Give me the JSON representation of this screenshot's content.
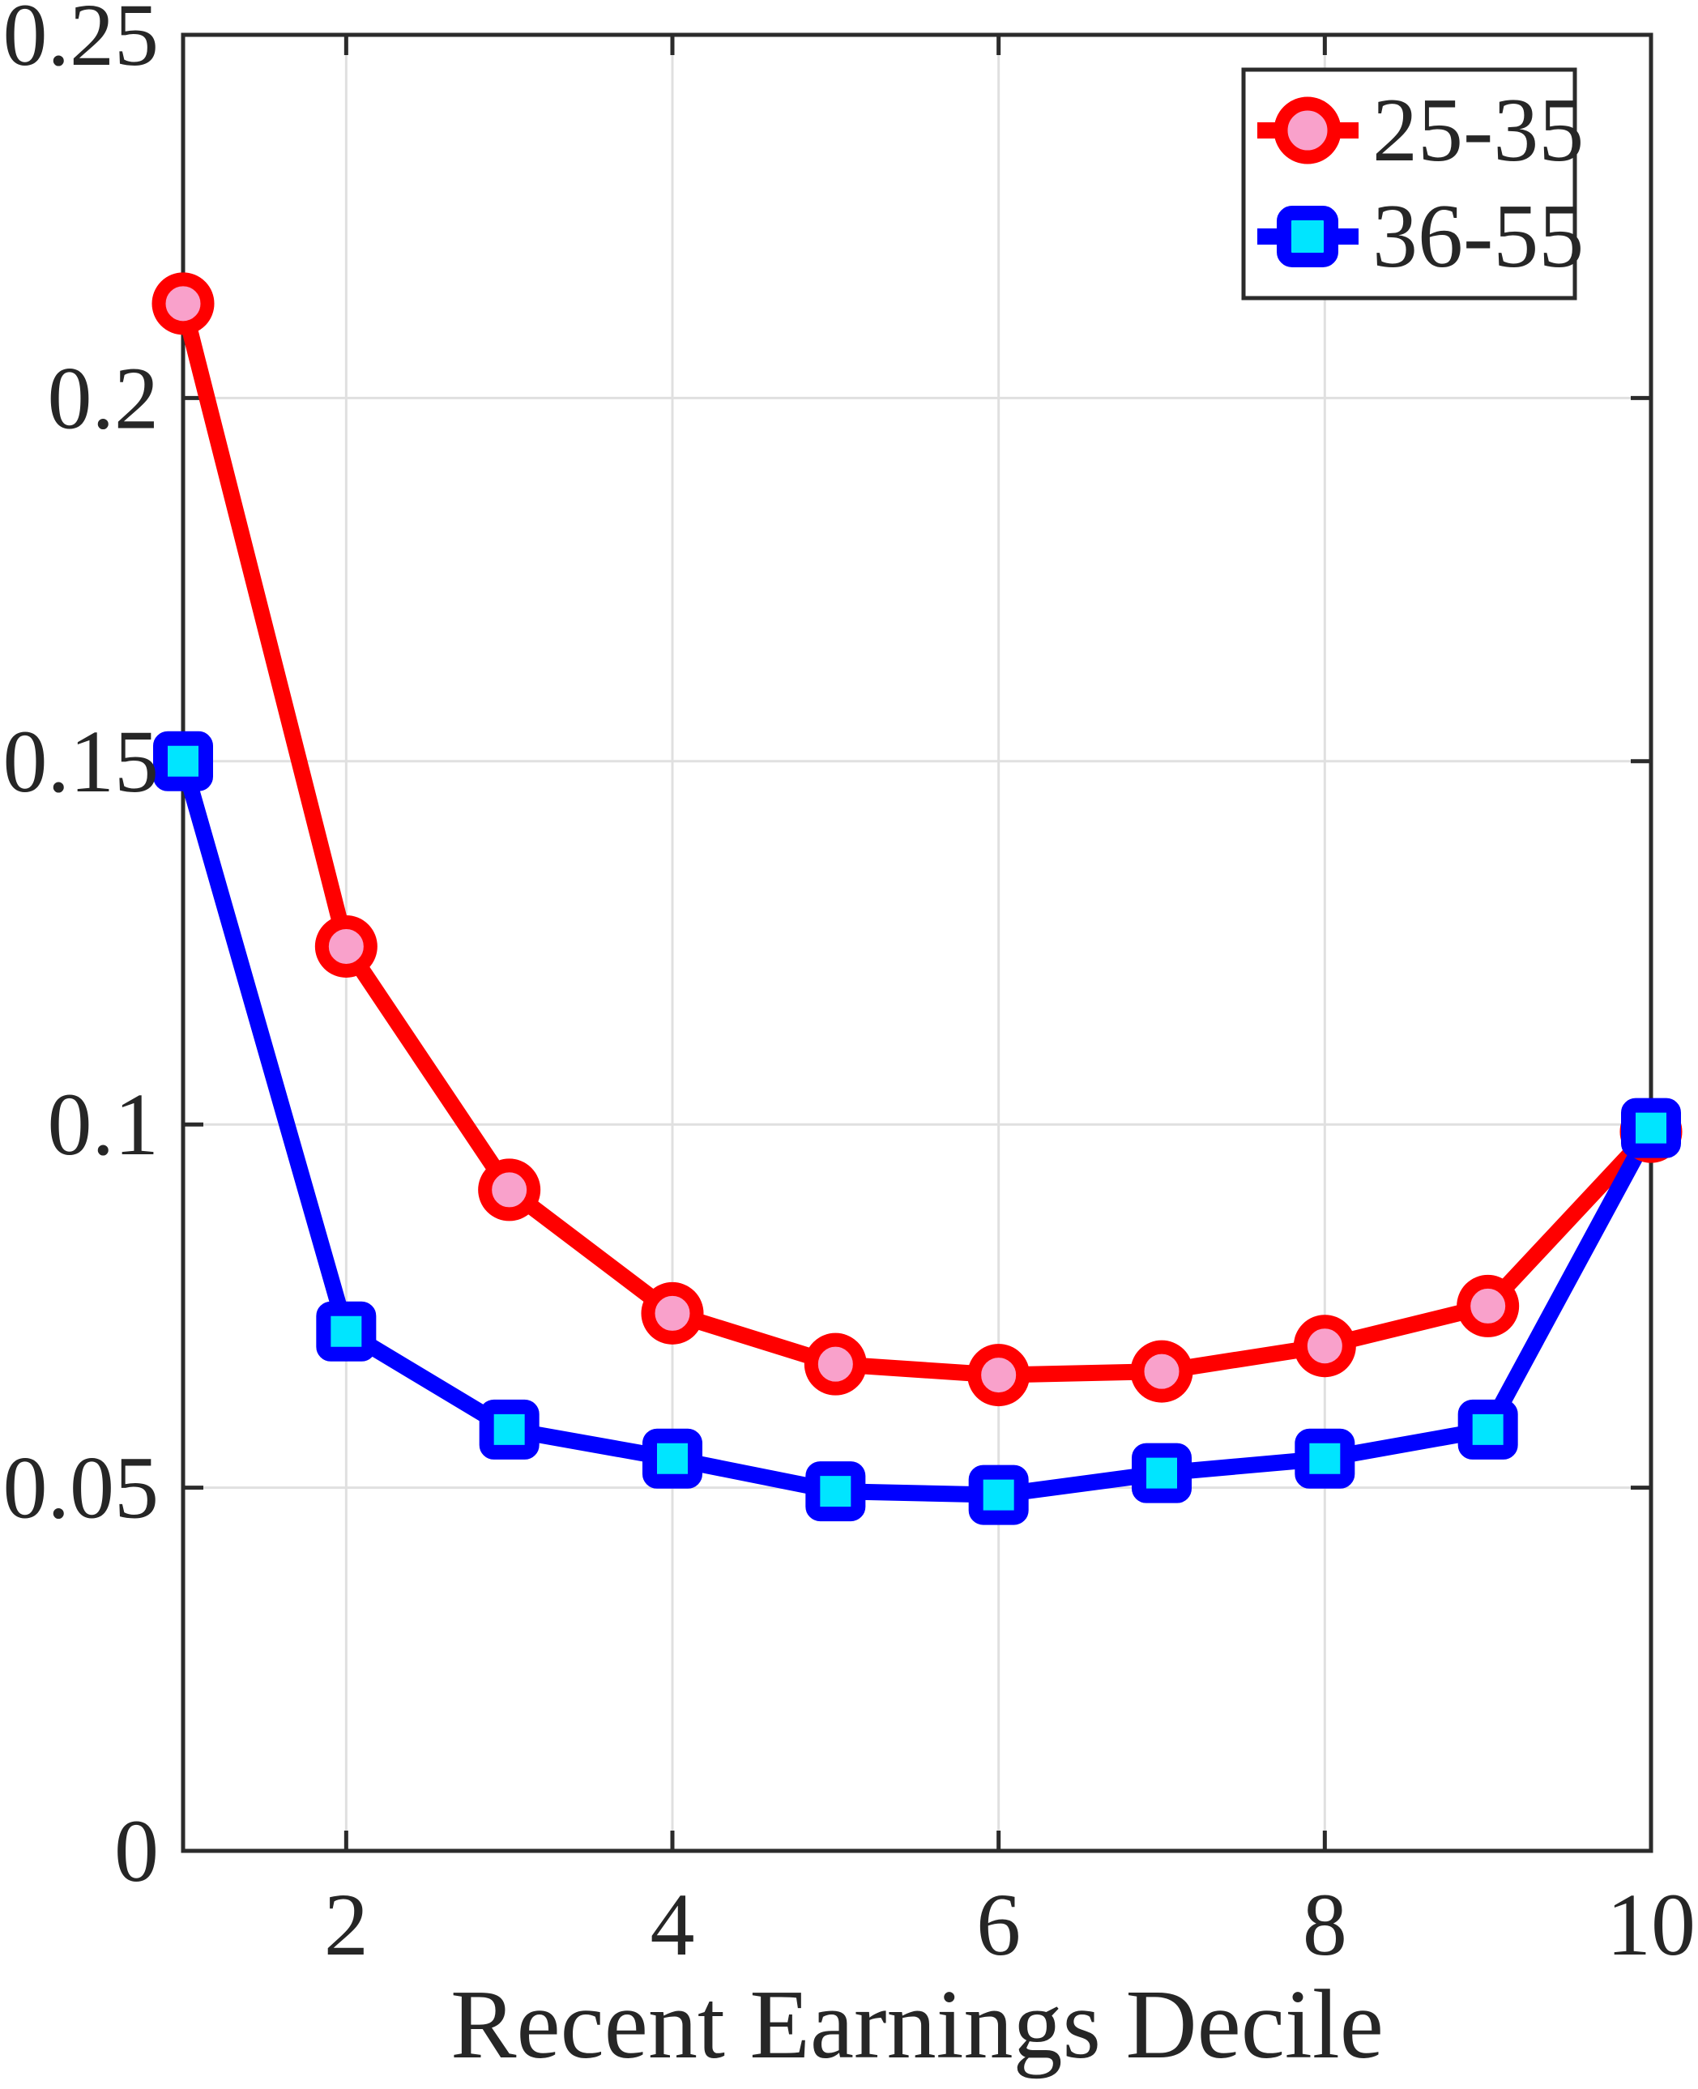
{
  "figure": {
    "background": "#ffffff"
  },
  "chart_data": {
    "type": "line",
    "title": "",
    "xlabel": "Recent Earnings Decile",
    "ylabel": "",
    "x": [
      1,
      2,
      3,
      4,
      5,
      6,
      7,
      8,
      9,
      10
    ],
    "series": [
      {
        "name": "25-35",
        "color": "#ff0000",
        "marker": "circle",
        "marker_face": "#f9a1cb",
        "values": [
          0.213,
          0.1245,
          0.091,
          0.074,
          0.067,
          0.0655,
          0.066,
          0.0695,
          0.075,
          0.099
        ]
      },
      {
        "name": "36-55",
        "color": "#0000ff",
        "marker": "square",
        "marker_face": "#00e5ff",
        "values": [
          0.15,
          0.0715,
          0.058,
          0.054,
          0.0495,
          0.049,
          0.052,
          0.054,
          0.058,
          0.0995
        ]
      }
    ],
    "xlim": [
      1,
      10
    ],
    "ylim": [
      0,
      0.25
    ],
    "xticks": {
      "values": [
        2,
        4,
        6,
        8,
        10
      ],
      "labels": [
        "2",
        "4",
        "6",
        "8",
        "10"
      ]
    },
    "yticks": {
      "values": [
        0,
        0.05,
        0.1,
        0.15,
        0.2,
        0.25
      ],
      "labels": [
        "0",
        "0.05",
        "0.1",
        "0.15",
        "0.2",
        "0.25"
      ]
    },
    "grid": true,
    "grid_color": "#e0e0e0",
    "axis_color": "#2b2b2b",
    "legend": {
      "position": "top-right",
      "entries": [
        "25-35",
        "36-55"
      ]
    }
  }
}
